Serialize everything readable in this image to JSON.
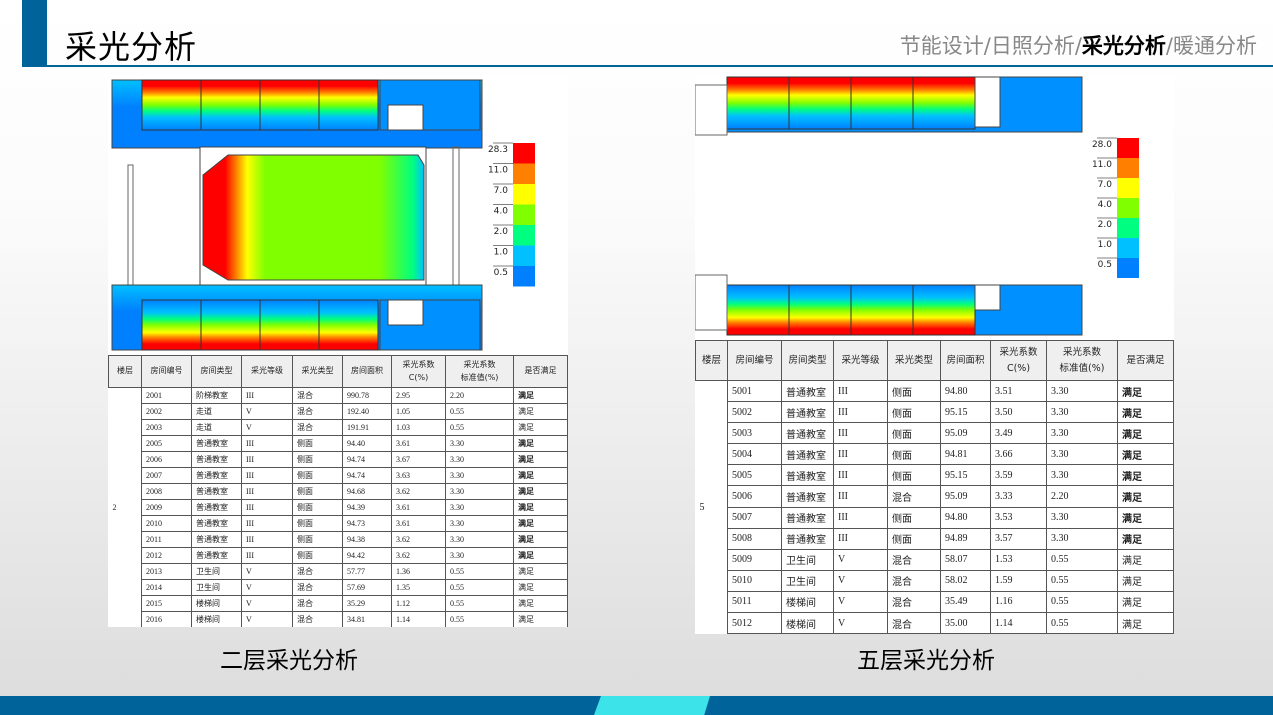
{
  "header": {
    "title": "采光分析",
    "breadcrumbs": [
      "节能设计",
      "日照分析",
      "采光分析",
      "暖通分析"
    ],
    "separator": "/",
    "current_index": 2
  },
  "colors": {
    "brand": "#00639a",
    "accent": "#3ce4ea",
    "legend": [
      "#ff0000",
      "#ff8000",
      "#ffff00",
      "#80ff00",
      "#00ff80",
      "#00c0ff",
      "#0080ff"
    ]
  },
  "floor2": {
    "caption": "二层采光分析",
    "legend": [
      "28.3",
      "11.0",
      "7.0",
      "4.0",
      "2.0",
      "1.0",
      "0.5"
    ],
    "table": {
      "headers": [
        "楼层",
        "房间编号",
        "房间类型",
        "采光等级",
        "采光类型",
        "房间面积",
        "采光系数\nC(%)",
        "采光系数\n标准值(%)",
        "是否满足"
      ],
      "floor": "2",
      "rows": [
        [
          "2001",
          "阶梯教室",
          "III",
          "混合",
          "990.78",
          "2.95",
          "2.20",
          "满足"
        ],
        [
          "2002",
          "走道",
          "V",
          "混合",
          "192.40",
          "1.05",
          "0.55",
          "满足"
        ],
        [
          "2003",
          "走道",
          "V",
          "混合",
          "191.91",
          "1.03",
          "0.55",
          "满足"
        ],
        [
          "2005",
          "普通教室",
          "III",
          "侧面",
          "94.40",
          "3.61",
          "3.30",
          "满足"
        ],
        [
          "2006",
          "普通教室",
          "III",
          "侧面",
          "94.74",
          "3.67",
          "3.30",
          "满足"
        ],
        [
          "2007",
          "普通教室",
          "III",
          "侧面",
          "94.74",
          "3.63",
          "3.30",
          "满足"
        ],
        [
          "2008",
          "普通教室",
          "III",
          "侧面",
          "94.68",
          "3.62",
          "3.30",
          "满足"
        ],
        [
          "2009",
          "普通教室",
          "III",
          "侧面",
          "94.39",
          "3.61",
          "3.30",
          "满足"
        ],
        [
          "2010",
          "普通教室",
          "III",
          "侧面",
          "94.73",
          "3.61",
          "3.30",
          "满足"
        ],
        [
          "2011",
          "普通教室",
          "III",
          "侧面",
          "94.38",
          "3.62",
          "3.30",
          "满足"
        ],
        [
          "2012",
          "普通教室",
          "III",
          "侧面",
          "94.42",
          "3.62",
          "3.30",
          "满足"
        ],
        [
          "2013",
          "卫生间",
          "V",
          "混合",
          "57.77",
          "1.36",
          "0.55",
          "满足"
        ],
        [
          "2014",
          "卫生间",
          "V",
          "混合",
          "57.69",
          "1.35",
          "0.55",
          "满足"
        ],
        [
          "2015",
          "楼梯间",
          "V",
          "混合",
          "35.29",
          "1.12",
          "0.55",
          "满足"
        ],
        [
          "2016",
          "楼梯间",
          "V",
          "混合",
          "34.81",
          "1.14",
          "0.55",
          "满足"
        ]
      ]
    }
  },
  "floor5": {
    "caption": "五层采光分析",
    "legend": [
      "28.0",
      "11.0",
      "7.0",
      "4.0",
      "2.0",
      "1.0",
      "0.5"
    ],
    "table": {
      "headers": [
        "楼层",
        "房间编号",
        "房间类型",
        "采光等级",
        "采光类型",
        "房间面积",
        "采光系数\nC(%)",
        "采光系数\n标准值(%)",
        "是否满足"
      ],
      "floor": "5",
      "rows": [
        [
          "5001",
          "普通教室",
          "III",
          "侧面",
          "94.80",
          "3.51",
          "3.30",
          "满足"
        ],
        [
          "5002",
          "普通教室",
          "III",
          "侧面",
          "95.15",
          "3.50",
          "3.30",
          "满足"
        ],
        [
          "5003",
          "普通教室",
          "III",
          "侧面",
          "95.09",
          "3.49",
          "3.30",
          "满足"
        ],
        [
          "5004",
          "普通教室",
          "III",
          "侧面",
          "94.81",
          "3.66",
          "3.30",
          "满足"
        ],
        [
          "5005",
          "普通教室",
          "III",
          "侧面",
          "95.15",
          "3.59",
          "3.30",
          "满足"
        ],
        [
          "5006",
          "普通教室",
          "III",
          "混合",
          "95.09",
          "3.33",
          "2.20",
          "满足"
        ],
        [
          "5007",
          "普通教室",
          "III",
          "侧面",
          "94.80",
          "3.53",
          "3.30",
          "满足"
        ],
        [
          "5008",
          "普通教室",
          "III",
          "侧面",
          "94.89",
          "3.57",
          "3.30",
          "满足"
        ],
        [
          "5009",
          "卫生间",
          "V",
          "混合",
          "58.07",
          "1.53",
          "0.55",
          "满足"
        ],
        [
          "5010",
          "卫生间",
          "V",
          "混合",
          "58.02",
          "1.59",
          "0.55",
          "满足"
        ],
        [
          "5011",
          "楼梯间",
          "V",
          "混合",
          "35.49",
          "1.16",
          "0.55",
          "满足"
        ],
        [
          "5012",
          "楼梯间",
          "V",
          "混合",
          "35.00",
          "1.14",
          "0.55",
          "满足"
        ]
      ]
    }
  }
}
